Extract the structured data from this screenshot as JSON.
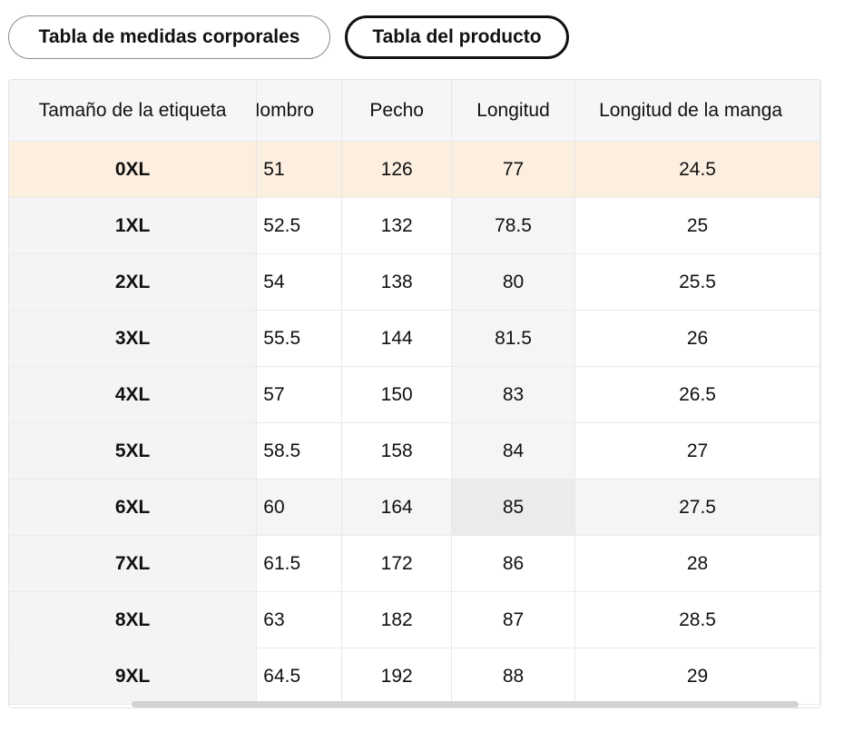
{
  "tabs": {
    "body_label": "Tabla de medidas corporales",
    "product_label": "Tabla del producto"
  },
  "table": {
    "headers": [
      "Tamaño de la etiqueta",
      "Hombro",
      "Pecho",
      "Longitud",
      "Longitud de la manga"
    ],
    "rows": [
      [
        "0XL",
        "51",
        "126",
        "77",
        "24.5"
      ],
      [
        "1XL",
        "52.5",
        "132",
        "78.5",
        "25"
      ],
      [
        "2XL",
        "54",
        "138",
        "80",
        "25.5"
      ],
      [
        "3XL",
        "55.5",
        "144",
        "81.5",
        "26"
      ],
      [
        "4XL",
        "57",
        "150",
        "83",
        "26.5"
      ],
      [
        "5XL",
        "58.5",
        "158",
        "84",
        "27"
      ],
      [
        "6XL",
        "60",
        "164",
        "85",
        "27.5"
      ],
      [
        "7XL",
        "61.5",
        "172",
        "86",
        "28"
      ],
      [
        "8XL",
        "63",
        "182",
        "87",
        "28.5"
      ],
      [
        "9XL",
        "64.5",
        "192",
        "88",
        "29"
      ]
    ]
  },
  "colors": {
    "highlight_row": "#fdefe0",
    "active_tab_border": "#111111"
  }
}
